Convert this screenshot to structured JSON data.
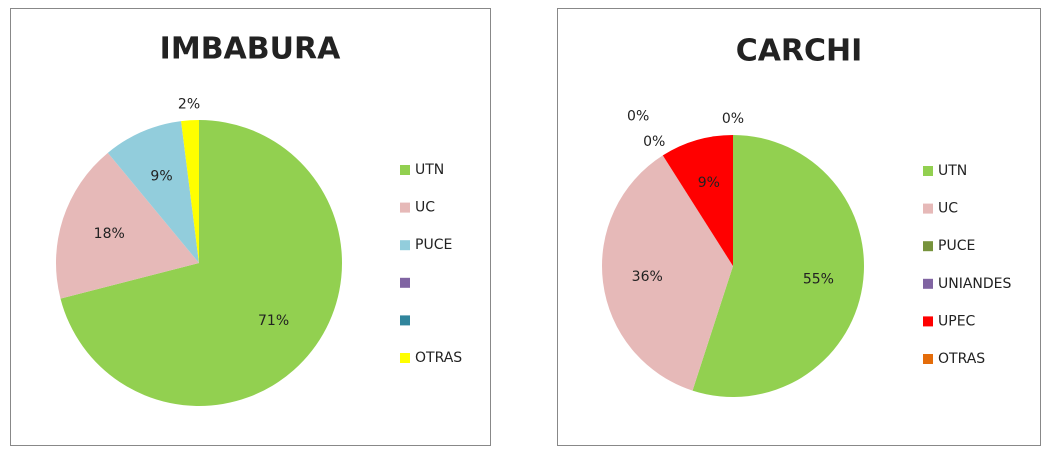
{
  "chart_data": [
    {
      "type": "pie",
      "title": "IMBABURA",
      "categories": [
        "UTN",
        "UC",
        "PUCE",
        null,
        null,
        "OTRAS"
      ],
      "values": [
        71,
        18,
        9,
        0,
        0,
        2
      ],
      "value_labels": [
        "71%",
        "18%",
        "9%",
        null,
        null,
        "2%"
      ],
      "colors": [
        "#92d050",
        "#e6b9b8",
        "#92cddc",
        "#8064a2",
        "#31859c",
        "#ffff00"
      ],
      "legend": "right"
    },
    {
      "type": "pie",
      "title": "CARCHI",
      "categories": [
        "UTN",
        "UC",
        "PUCE",
        "UNIANDES",
        "UPEC",
        "OTRAS"
      ],
      "values": [
        55,
        36,
        0,
        0,
        9,
        0
      ],
      "value_labels": [
        "55%",
        "36%",
        "0%",
        "0%",
        "9%",
        "0%"
      ],
      "colors": [
        "#92d050",
        "#e6b9b8",
        "#77933c",
        "#8064a2",
        "#ff0000",
        "#e46c0a"
      ],
      "legend": "right"
    }
  ]
}
